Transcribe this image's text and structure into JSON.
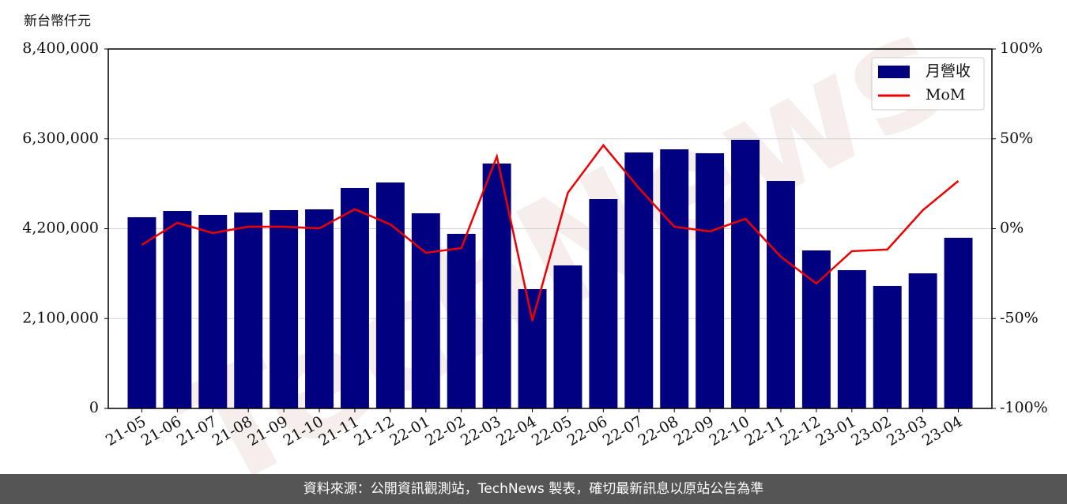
{
  "chart_data": {
    "type": "bar_line",
    "y_axis_label": "新台幣仟元",
    "watermark": "TechNews",
    "footer": "資料來源：公開資訊觀測站，TechNews 製表，確切最新訊息以原站公告為準",
    "categories": [
      "21-05",
      "21-06",
      "21-07",
      "21-08",
      "21-09",
      "21-10",
      "21-11",
      "21-12",
      "22-01",
      "22-02",
      "22-03",
      "22-04",
      "22-05",
      "22-06",
      "22-07",
      "22-08",
      "22-09",
      "22-10",
      "22-11",
      "22-12",
      "23-01",
      "23-02",
      "23-03",
      "23-04"
    ],
    "series": [
      {
        "name": "月營收",
        "color": "#000080",
        "type": "bar",
        "values": [
          4468000,
          4615000,
          4523000,
          4578000,
          4634000,
          4652000,
          5151000,
          5280000,
          4560000,
          4080000,
          5723000,
          2788000,
          3342000,
          4892000,
          5982000,
          6055000,
          5963000,
          6277000,
          5317000,
          3692000,
          3231000,
          2862000,
          3157000,
          3988000
        ]
      },
      {
        "name": "MoM",
        "color": "#ee0000",
        "type": "line",
        "axis": "y2",
        "values": [
          -9,
          3.3,
          -2.4,
          1.1,
          1.1,
          0.2,
          10.8,
          2.4,
          -13.4,
          -10.8,
          40.2,
          -51.2,
          20,
          46.4,
          22.6,
          1.1,
          -1.5,
          5.5,
          -15.6,
          -30.5,
          -12.5,
          -11.6,
          10.3,
          26.6
        ]
      }
    ],
    "ylim": [
      0,
      8400000
    ],
    "yticks": [
      0,
      {
        "value": 2100000,
        "label": "2,100,000"
      },
      {
        "value": 4200000,
        "label": "4,200,000"
      },
      {
        "value": 6300000,
        "label": "6,300,000"
      },
      {
        "value": 8400000,
        "label": "8,400,000"
      }
    ],
    "y2lim": [
      -100,
      100
    ],
    "y2ticks": [
      {
        "value": -100,
        "label": "-100%"
      },
      {
        "value": -50,
        "label": "-50%"
      },
      {
        "value": 0,
        "label": "0%"
      },
      {
        "value": 50,
        "label": "50%"
      },
      {
        "value": 100,
        "label": "100%"
      }
    ],
    "grid": true,
    "legend": "upper right"
  }
}
